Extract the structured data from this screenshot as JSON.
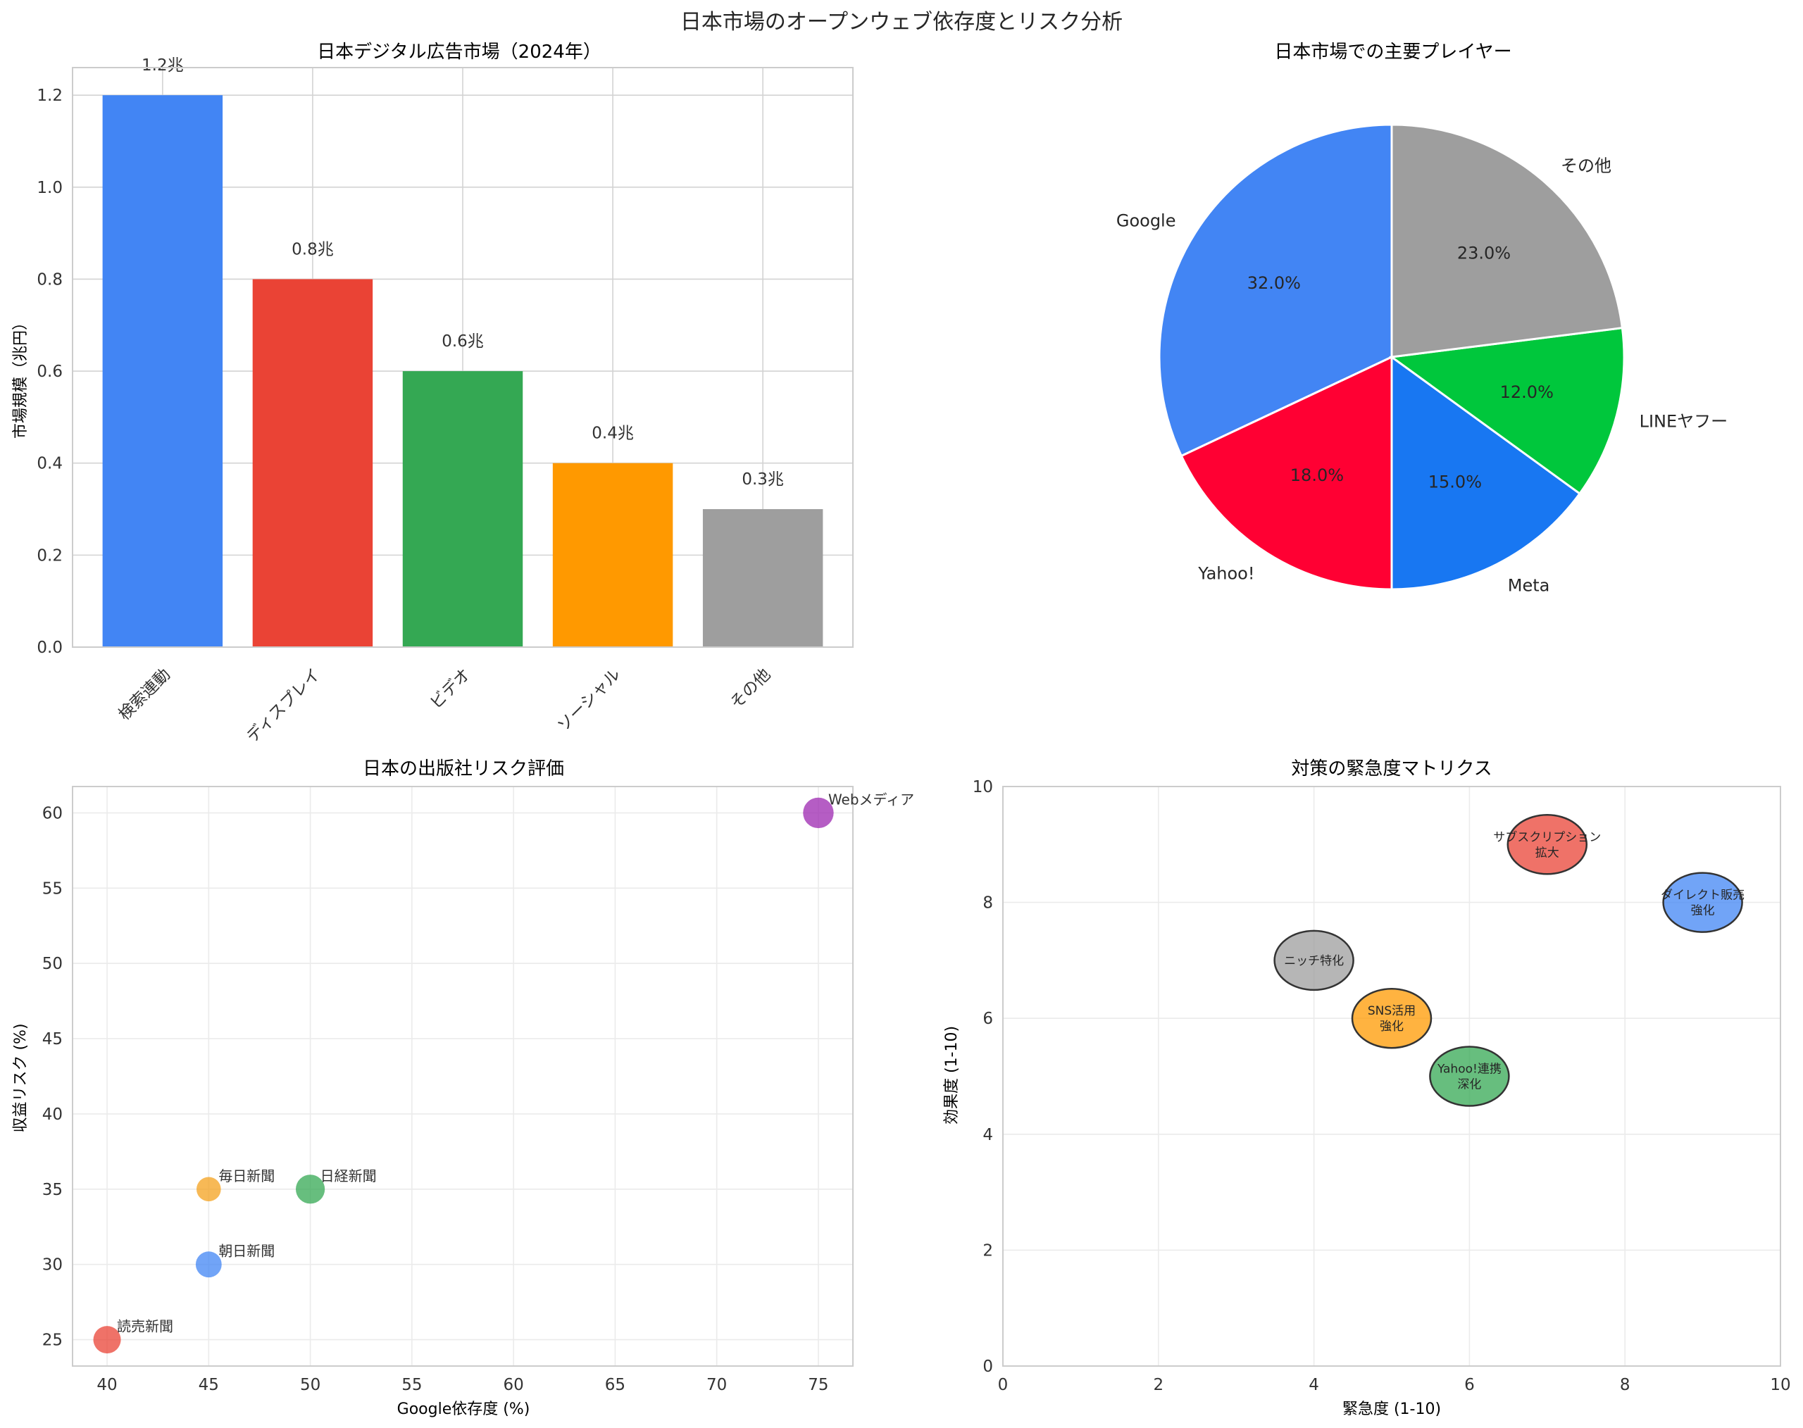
{
  "figure_title": "日本市場のオープンウェブ依存度とリスク分析",
  "chart_data": [
    {
      "type": "bar",
      "title": "日本デジタル広告市場（2024年）",
      "xlabel": "",
      "ylabel": "市場規模（兆円）",
      "categories": [
        "検索連動",
        "ディスプレイ",
        "ビデオ",
        "ソーシャル",
        "その他"
      ],
      "values": [
        1.2,
        0.8,
        0.6,
        0.4,
        0.3
      ],
      "value_labels": [
        "1.2兆",
        "0.8兆",
        "0.6兆",
        "0.4兆",
        "0.3兆"
      ],
      "colors": [
        "#4285F4",
        "#EA4335",
        "#34A853",
        "#FF9900",
        "#9E9E9E"
      ],
      "ylim": [
        0,
        1.26
      ],
      "yticks": [
        0.0,
        0.2,
        0.4,
        0.6,
        0.8,
        1.0,
        1.2
      ],
      "ytick_labels": [
        "0.0",
        "0.2",
        "0.4",
        "0.6",
        "0.8",
        "1.0",
        "1.2"
      ],
      "grid": true
    },
    {
      "type": "pie",
      "title": "日本市場での主要プレイヤー",
      "labels": [
        "Google",
        "Yahoo!",
        "Meta",
        "LINEヤフー",
        "その他"
      ],
      "values": [
        32.0,
        18.0,
        15.0,
        12.0,
        23.0
      ],
      "pct_labels": [
        "32.0%",
        "18.0%",
        "15.0%",
        "12.0%",
        "23.0%"
      ],
      "colors": [
        "#4285F4",
        "#FF0033",
        "#1877F2",
        "#00C73C",
        "#9E9E9E"
      ],
      "start_angle_deg": 90,
      "direction": "counterclockwise"
    },
    {
      "type": "scatter",
      "title": "日本の出版社リスク評価",
      "xlabel": "Google依存度 (%)",
      "ylabel": "収益リスク (%)",
      "xlim": [
        38.3,
        76.7
      ],
      "ylim": [
        23.25,
        61.75
      ],
      "xticks": [
        40,
        45,
        50,
        55,
        60,
        65,
        70,
        75
      ],
      "yticks": [
        25,
        30,
        35,
        40,
        45,
        50,
        55,
        60
      ],
      "points": [
        {
          "label": "読売新聞",
          "x": 40,
          "y": 25,
          "size": 2.5,
          "color": "#EA4335"
        },
        {
          "label": "朝日新聞",
          "x": 45,
          "y": 30,
          "size": 2.0,
          "color": "#4285F4"
        },
        {
          "label": "毎日新聞",
          "x": 45,
          "y": 35,
          "size": 1.5,
          "color": "#F4A21E"
        },
        {
          "label": "日経新聞",
          "x": 50,
          "y": 35,
          "size": 3.0,
          "color": "#34A853"
        },
        {
          "label": "Webメディア",
          "x": 75,
          "y": 60,
          "size": 3.5,
          "color": "#9C27B0"
        }
      ],
      "grid": true
    },
    {
      "type": "scatter",
      "title": "対策の緊急度マトリクス",
      "xlabel": "緊急度 (1-10)",
      "ylabel": "効果度 (1-10)",
      "xlim": [
        0,
        10
      ],
      "ylim": [
        0,
        10
      ],
      "xticks": [
        0,
        2,
        4,
        6,
        8,
        10
      ],
      "yticks": [
        0,
        2,
        4,
        6,
        8,
        10
      ],
      "points": [
        {
          "label": "サブスクリプション\n拡大",
          "x": 7,
          "y": 9,
          "color": "#EA4335"
        },
        {
          "label": "ダイレクト販売\n強化",
          "x": 9,
          "y": 8,
          "color": "#4285F4"
        },
        {
          "label": "ニッチ特化",
          "x": 4,
          "y": 7,
          "color": "#9E9E9E"
        },
        {
          "label": "SNS活用\n強化",
          "x": 5,
          "y": 6,
          "color": "#FF9900"
        },
        {
          "label": "Yahoo!連携\n深化",
          "x": 6,
          "y": 5,
          "color": "#34A853"
        }
      ],
      "grid": true
    }
  ]
}
